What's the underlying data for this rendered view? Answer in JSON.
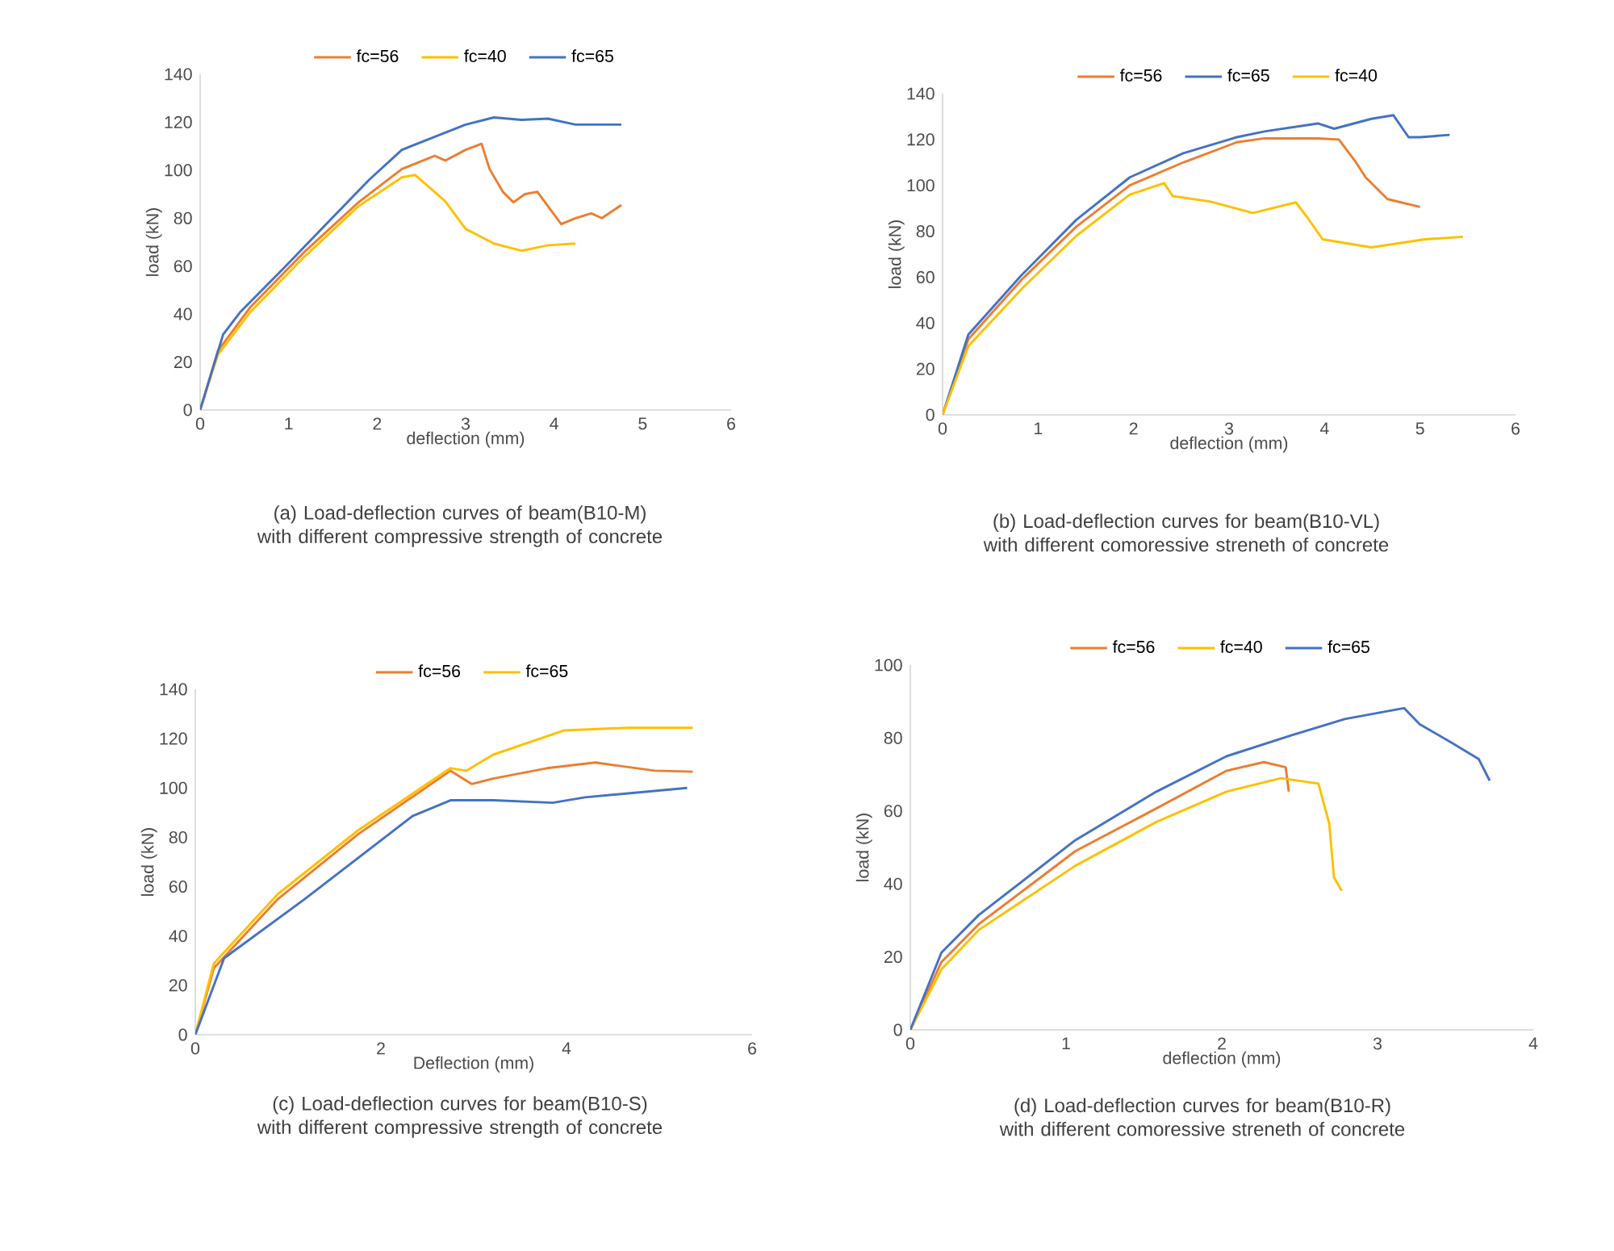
{
  "chart_data": [
    {
      "type": "line",
      "title": "(a) Load-deflection curves of beam(B10-M) with different compressive strength of concrete",
      "xlabel": "deflection (mm)",
      "ylabel": "load (kN)",
      "xlim": [
        0,
        6
      ],
      "ylim": [
        0,
        140
      ],
      "xticks": [
        0,
        1,
        2,
        3,
        4,
        5,
        6
      ],
      "yticks": [
        0,
        20,
        40,
        60,
        80,
        100,
        120,
        140
      ],
      "legend": "top",
      "series": [
        {
          "name": "fc=56",
          "color": "#ed7d31",
          "x": [
            0,
            0.2,
            0.57,
            1.18,
            1.79,
            2.28,
            2.65,
            2.77,
            3.0,
            3.18,
            3.27,
            3.42,
            3.54,
            3.67,
            3.81,
            3.99,
            4.08,
            4.24,
            4.42,
            4.54,
            4.76
          ],
          "values": [
            0,
            24.6,
            43,
            66,
            86.6,
            100.5,
            106,
            104,
            108.5,
            111,
            100.5,
            91,
            86.6,
            90,
            91,
            82,
            77.5,
            80,
            82,
            80,
            85.5
          ]
        },
        {
          "name": "fc=40",
          "color": "#ffc000",
          "x": [
            0,
            0.2,
            0.57,
            1.18,
            1.79,
            2.28,
            2.43,
            2.77,
            3.0,
            3.32,
            3.63,
            3.93,
            4.24
          ],
          "values": [
            0,
            23,
            41,
            64,
            85,
            97,
            98,
            87,
            75.5,
            69.4,
            66.4,
            68.7,
            69.4
          ]
        },
        {
          "name": "fc=65",
          "color": "#4472c4",
          "x": [
            0,
            0.26,
            0.45,
            0.94,
            1.49,
            1.91,
            2.28,
            2.59,
            3.0,
            3.32,
            3.63,
            3.93,
            4.24,
            4.76
          ],
          "values": [
            0,
            31.5,
            40.7,
            59,
            80,
            96,
            108.5,
            113,
            119,
            122,
            121,
            121.5,
            119,
            119
          ]
        }
      ]
    },
    {
      "type": "line",
      "title": "(b) Load-deflection curves for beam(B10-VL) with different comoressive streneth of concrete",
      "xlabel": "deflection (mm)",
      "ylabel": "load (kN)",
      "xlim": [
        0,
        6
      ],
      "ylim": [
        0,
        140
      ],
      "xticks": [
        0,
        1,
        2,
        3,
        4,
        5,
        6
      ],
      "yticks": [
        0,
        20,
        40,
        60,
        80,
        100,
        120,
        140
      ],
      "legend": "top",
      "series": [
        {
          "name": "fc=56",
          "color": "#ed7d31",
          "x": [
            0,
            0.27,
            0.83,
            1.4,
            1.96,
            2.52,
            3.08,
            3.37,
            3.93,
            4.15,
            4.32,
            4.43,
            4.66,
            5.0
          ],
          "values": [
            0,
            33,
            59,
            82,
            100,
            110,
            118.8,
            120.5,
            120.5,
            120,
            110.6,
            103.5,
            94,
            90.6
          ]
        },
        {
          "name": "fc=65",
          "color": "#4472c4",
          "x": [
            0,
            0.27,
            0.83,
            1.4,
            1.96,
            2.52,
            3.08,
            3.37,
            3.93,
            4.1,
            4.49,
            4.72,
            4.88,
            5.0,
            5.31
          ],
          "values": [
            0,
            35,
            61,
            85,
            103.5,
            114,
            121,
            123.5,
            127,
            124.7,
            129,
            130.6,
            121,
            121,
            122
          ]
        },
        {
          "name": "fc=40",
          "color": "#ffc000",
          "x": [
            0,
            0.27,
            0.83,
            1.4,
            1.96,
            2.32,
            2.41,
            2.8,
            3.25,
            3.7,
            3.82,
            3.98,
            4.49,
            5.05,
            5.45
          ],
          "values": [
            0,
            30,
            55,
            78,
            96,
            101,
            95.3,
            93,
            88,
            92.6,
            86,
            76.5,
            73,
            76.5,
            77.6
          ]
        }
      ]
    },
    {
      "type": "line",
      "title": "(c) Load-deflection curves for beam(B10-S) with different compressive strength of concrete",
      "xlabel": "Deflection (mm)",
      "ylabel": "load (kN)",
      "xlim": [
        0,
        6
      ],
      "ylim": [
        0,
        140
      ],
      "xticks": [
        0,
        2,
        4,
        6
      ],
      "yticks": [
        0,
        20,
        40,
        60,
        80,
        100,
        120,
        140
      ],
      "legend": "top",
      "series": [
        {
          "name": "fc=56",
          "color": "#ed7d31",
          "x": [
            0,
            0.2,
            0.89,
            1.76,
            2.75,
            2.98,
            3.21,
            3.79,
            4.31,
            4.95,
            5.36
          ],
          "values": [
            0,
            27,
            55,
            81.4,
            107,
            101.6,
            103.8,
            108,
            110.3,
            107,
            106.6
          ]
        },
        {
          "name": "fc=65",
          "color": "#ffc000",
          "x": [
            0,
            0.2,
            0.89,
            1.76,
            2.75,
            2.92,
            3.21,
            3.97,
            4.66,
            5.36
          ],
          "values": [
            0,
            28.9,
            57,
            83,
            108,
            107,
            113.5,
            123.3,
            124.4,
            124.4
          ]
        },
        {
          "color": "#4472c4",
          "x": [
            0,
            0.31,
            1.18,
            2.34,
            2.75,
            3.21,
            3.85,
            4.2,
            5.3
          ],
          "values": [
            0,
            31,
            55,
            88.6,
            95,
            95,
            94,
            96.2,
            100
          ]
        }
      ]
    },
    {
      "type": "line",
      "title": "(d) Load-deflection curves for beam(B10-R) with different comoressive streneth of concrete",
      "xlabel": "deflection (mm)",
      "ylabel": "load (kN)",
      "xlim": [
        0,
        4
      ],
      "ylim": [
        0,
        100
      ],
      "xticks": [
        0,
        1,
        2,
        3,
        4
      ],
      "yticks": [
        0,
        20,
        40,
        60,
        80,
        100
      ],
      "legend": "top",
      "series": [
        {
          "name": "fc=56",
          "color": "#ed7d31",
          "x": [
            0,
            0.2,
            0.44,
            1.06,
            1.58,
            2.03,
            2.27,
            2.41,
            2.43
          ],
          "values": [
            0,
            18.6,
            29,
            49,
            60.7,
            71,
            73.4,
            72,
            65.3
          ]
        },
        {
          "name": "fc=40",
          "color": "#ffc000",
          "x": [
            0,
            0.2,
            0.44,
            1.06,
            1.58,
            2.03,
            2.38,
            2.62,
            2.69,
            2.72,
            2.77
          ],
          "values": [
            0,
            16.6,
            27.4,
            45,
            57,
            65.3,
            69,
            67.5,
            56.5,
            41.8,
            38.1
          ]
        },
        {
          "name": "fc=65",
          "color": "#4472c4",
          "x": [
            0,
            0.2,
            0.44,
            1.06,
            1.58,
            2.03,
            2.45,
            2.79,
            3.17,
            3.27,
            3.48,
            3.65,
            3.72
          ],
          "values": [
            0,
            21.2,
            31.5,
            52,
            65.3,
            75,
            80.8,
            85.2,
            88.2,
            83.8,
            78.6,
            74.2,
            68.3
          ]
        }
      ]
    }
  ]
}
